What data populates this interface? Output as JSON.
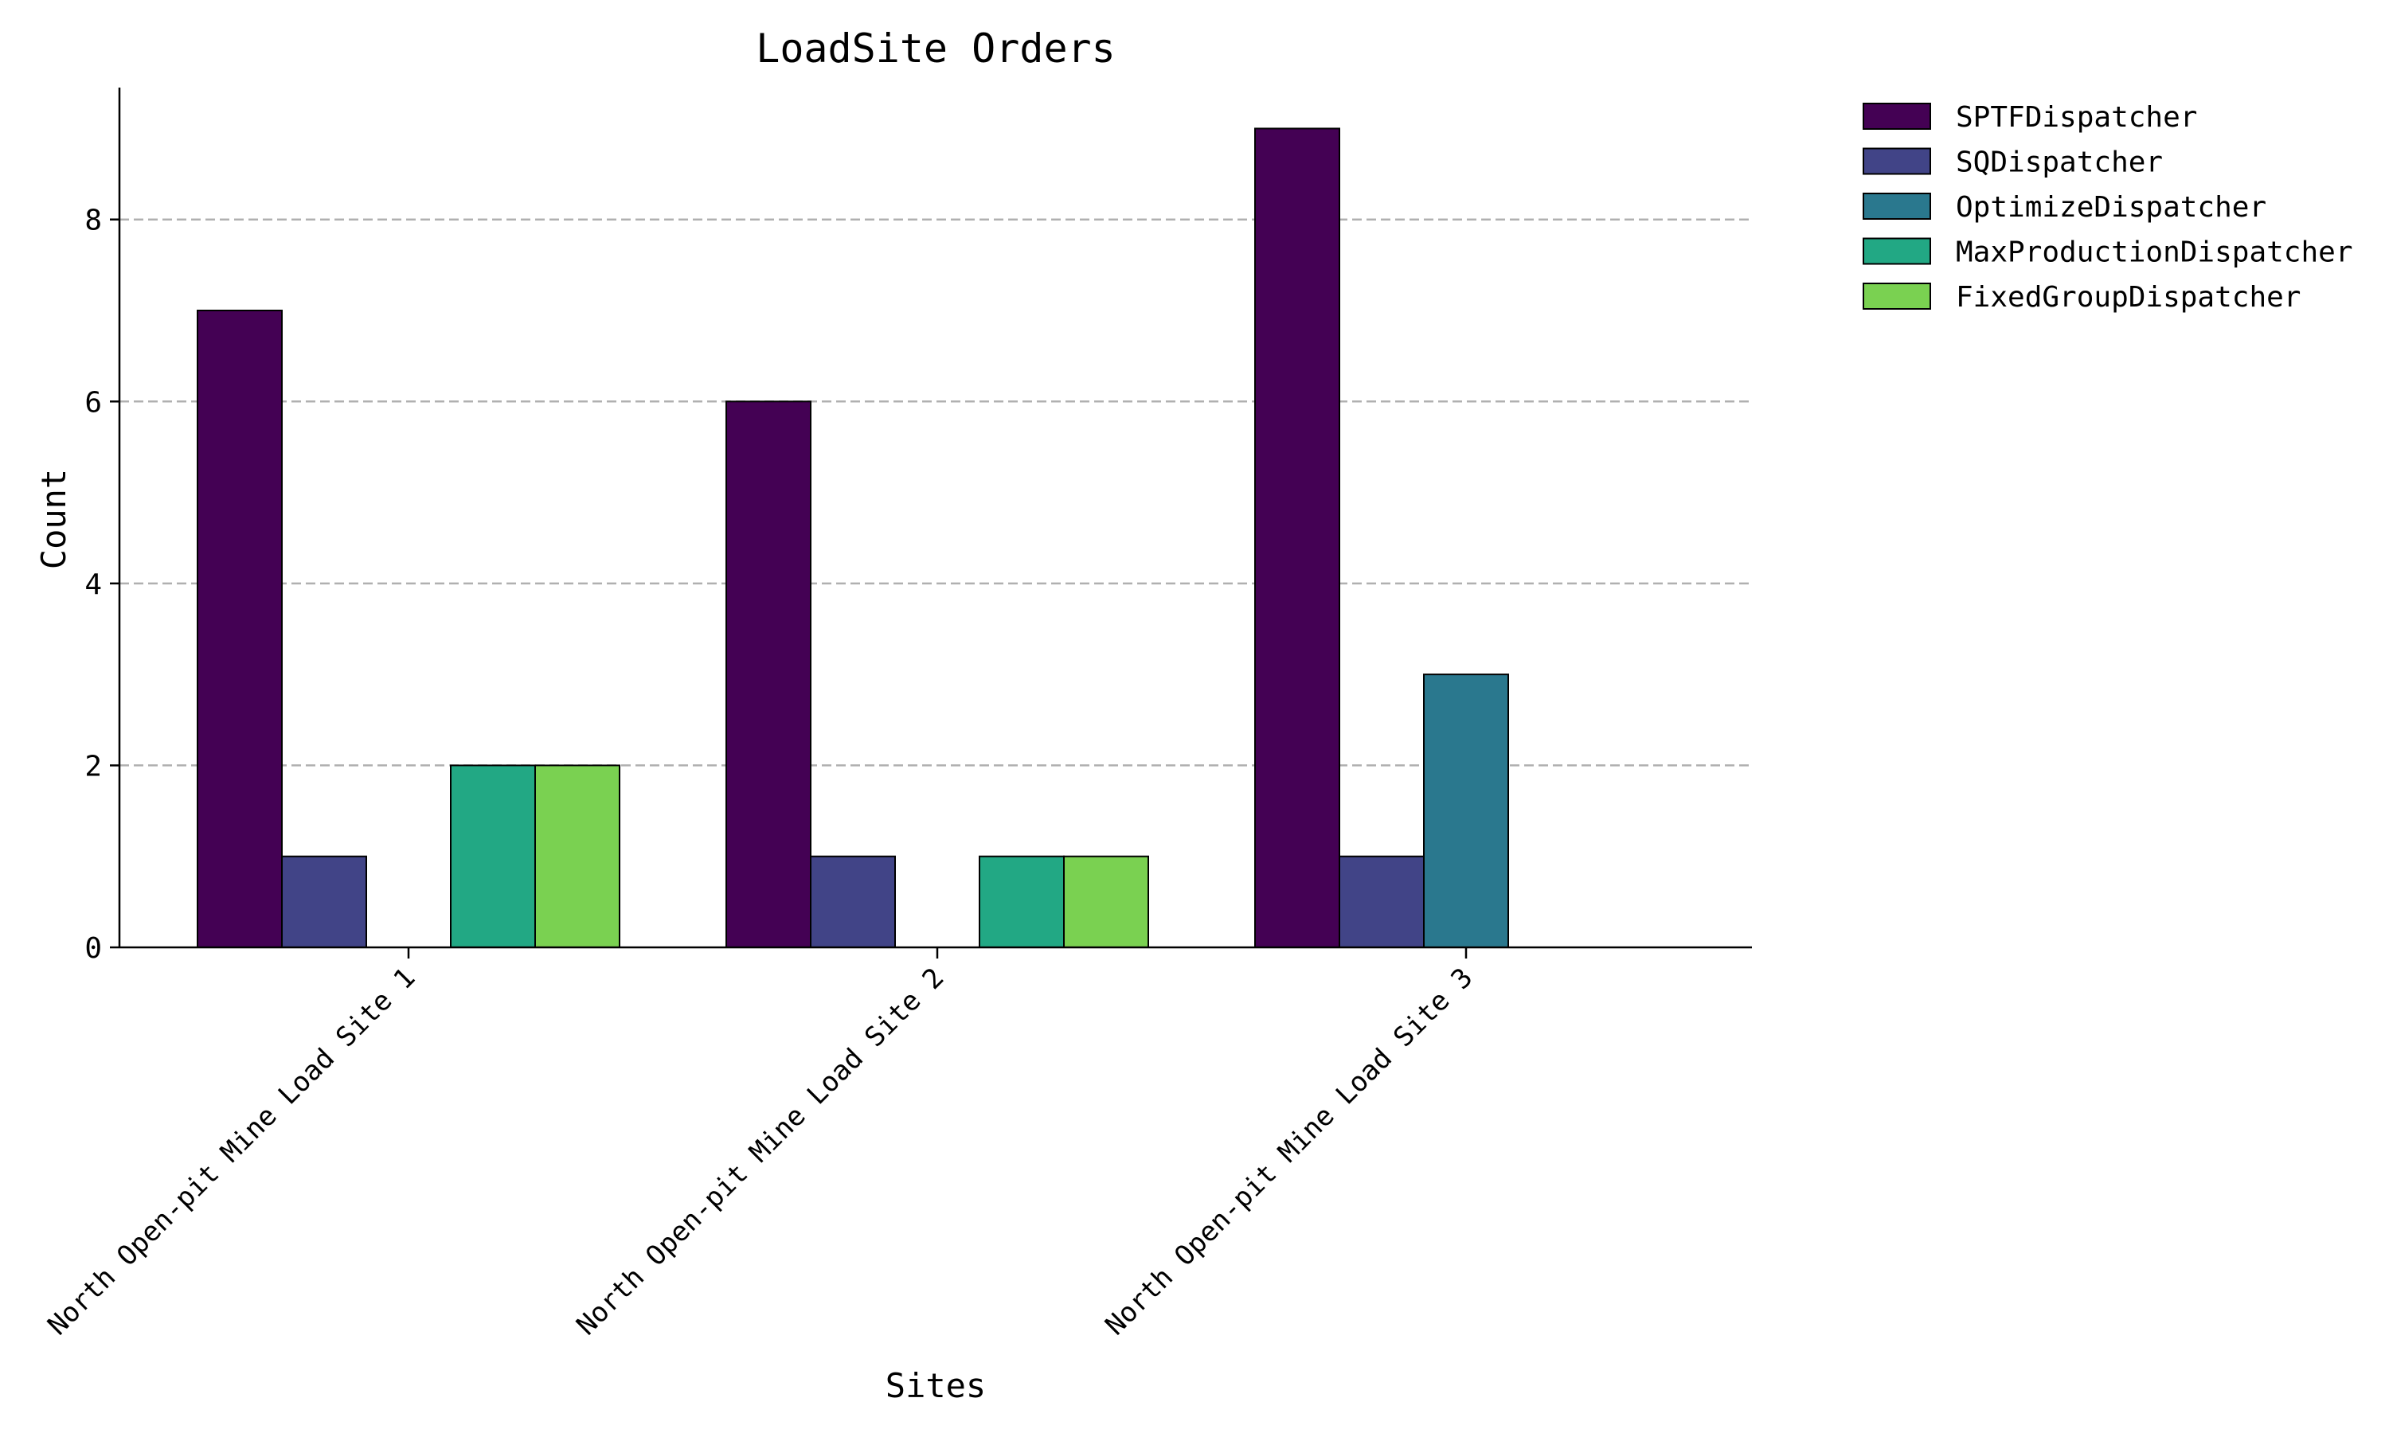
{
  "chart_data": {
    "type": "bar",
    "title": "LoadSite Orders",
    "xlabel": "Sites",
    "ylabel": "Count",
    "categories": [
      "North Open-pit Mine Load Site 1",
      "North Open-pit Mine Load Site 2",
      "North Open-pit Mine Load Site 3"
    ],
    "series": [
      {
        "name": "SPTFDispatcher",
        "color": "#440154",
        "values": [
          7,
          6,
          9
        ]
      },
      {
        "name": "SQDispatcher",
        "color": "#414487",
        "values": [
          1,
          1,
          1
        ]
      },
      {
        "name": "OptimizeDispatcher",
        "color": "#2a788e",
        "values": [
          0,
          0,
          3
        ]
      },
      {
        "name": "MaxProductionDispatcher",
        "color": "#22a884",
        "values": [
          2,
          1,
          0
        ]
      },
      {
        "name": "FixedGroupDispatcher",
        "color": "#7ad151",
        "values": [
          2,
          1,
          0
        ]
      }
    ],
    "ylim": [
      0,
      9.45
    ],
    "yticks": [
      0,
      2,
      4,
      6,
      8
    ],
    "grid": "y dashed",
    "legend": "outside top-right"
  }
}
